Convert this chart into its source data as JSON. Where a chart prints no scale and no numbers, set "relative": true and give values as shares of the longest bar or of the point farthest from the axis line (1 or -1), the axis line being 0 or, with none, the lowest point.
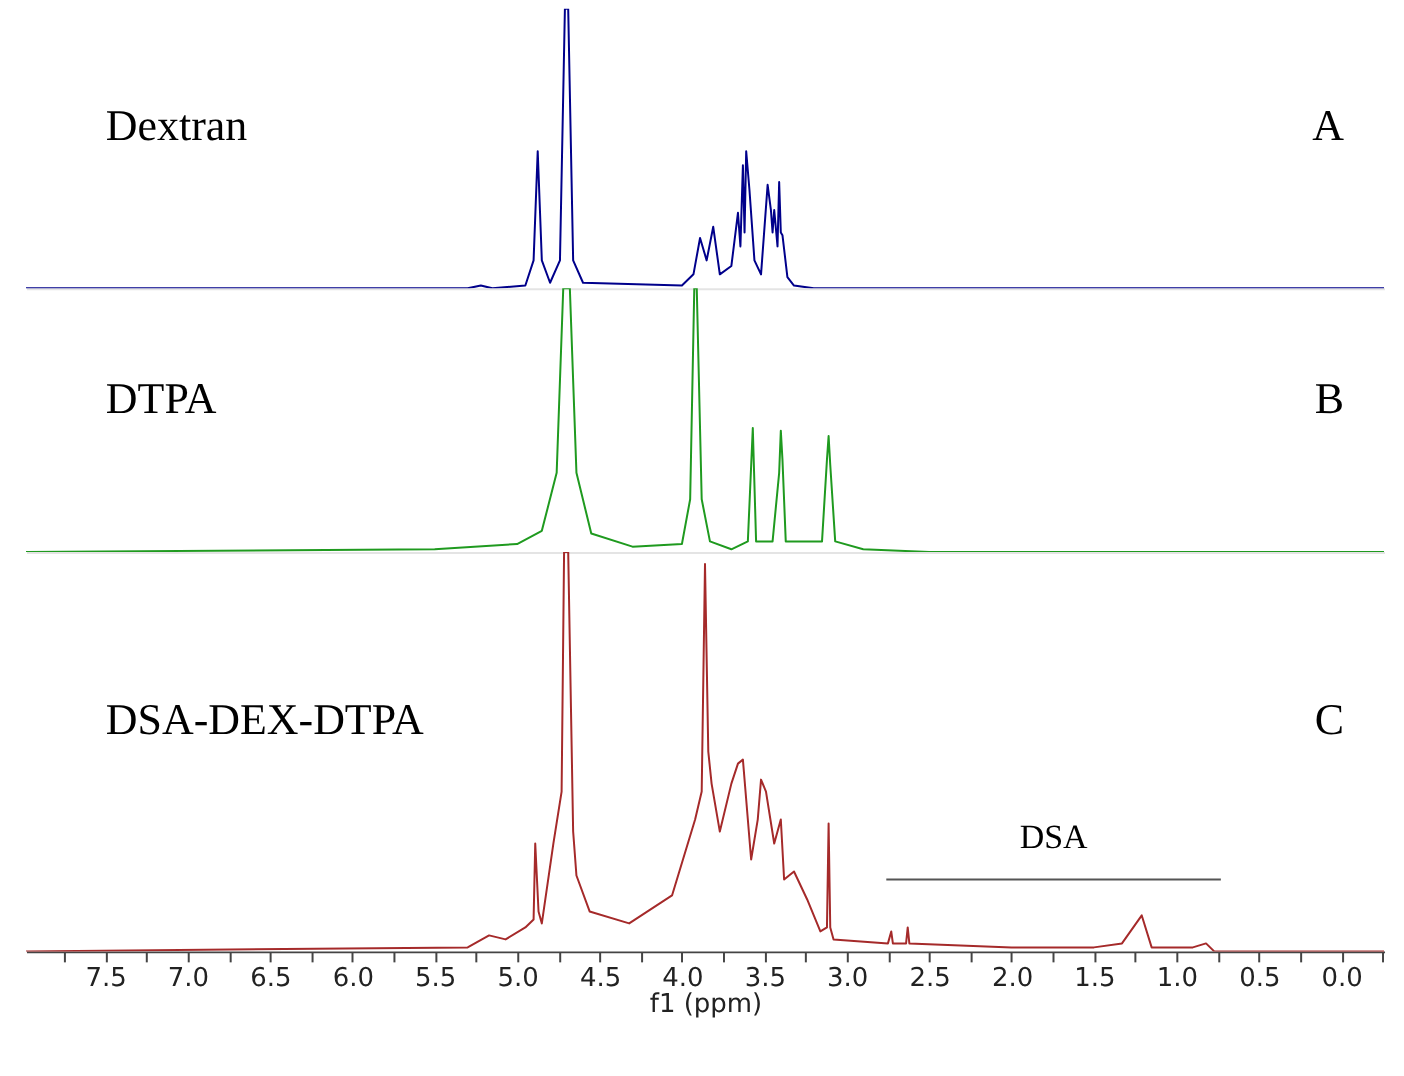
{
  "chart_data": [
    {
      "type": "line",
      "relative": true,
      "xlim": [
        7.98,
        -0.26
      ],
      "tick_labels": false,
      "annotations": [
        "Dextran",
        "A"
      ],
      "series": [
        {
          "color": "#00008b",
          "x": [
            7.98,
            5.3,
            5.22,
            5.15,
            4.95,
            4.9,
            4.875,
            4.85,
            4.8,
            4.74,
            4.71,
            4.69,
            4.66,
            4.6,
            4.0,
            3.93,
            3.89,
            3.85,
            3.81,
            3.77,
            3.7,
            3.66,
            3.645,
            3.63,
            3.62,
            3.61,
            3.59,
            3.56,
            3.52,
            3.48,
            3.46,
            3.45,
            3.44,
            3.42,
            3.41,
            3.4,
            3.39,
            3.36,
            3.32,
            3.2,
            -0.26
          ],
          "values": [
            0,
            0,
            0.01,
            0,
            0.01,
            0.1,
            0.49,
            0.1,
            0.02,
            0.1,
            1,
            1,
            0.1,
            0.02,
            0.01,
            0.05,
            0.18,
            0.1,
            0.22,
            0.05,
            0.08,
            0.27,
            0.15,
            0.44,
            0.2,
            0.49,
            0.35,
            0.1,
            0.05,
            0.37,
            0.28,
            0.2,
            0.28,
            0.15,
            0.38,
            0.2,
            0.19,
            0.04,
            0.01,
            0,
            0
          ]
        }
      ]
    },
    {
      "type": "line",
      "relative": true,
      "xlim": [
        7.98,
        -0.26
      ],
      "tick_labels": false,
      "annotations": [
        "DTPA",
        "B"
      ],
      "series": [
        {
          "color": "#1f9a1f",
          "x": [
            7.98,
            5.5,
            5.0,
            4.85,
            4.76,
            4.72,
            4.68,
            4.64,
            4.55,
            4.3,
            4.0,
            3.95,
            3.925,
            3.91,
            3.88,
            3.83,
            3.7,
            3.6,
            3.57,
            3.55,
            3.45,
            3.41,
            3.4,
            3.39,
            3.37,
            3.15,
            3.12,
            3.11,
            3.1,
            3.07,
            2.9,
            2.5,
            -0.26
          ],
          "values": [
            0,
            0.01,
            0.03,
            0.08,
            0.3,
            1,
            1,
            0.3,
            0.07,
            0.02,
            0.03,
            0.2,
            1,
            1,
            0.2,
            0.04,
            0.01,
            0.04,
            0.47,
            0.04,
            0.04,
            0.3,
            0.46,
            0.35,
            0.04,
            0.04,
            0.35,
            0.44,
            0.33,
            0.04,
            0.01,
            0,
            0
          ]
        }
      ]
    },
    {
      "type": "line",
      "relative": true,
      "xlim": [
        7.98,
        -0.26
      ],
      "tick_labels": "x",
      "xlabel": "f1 (ppm)",
      "xticks": [
        {
          "value": 7.75,
          "label": null
        },
        {
          "value": 7.5,
          "label": "7.5"
        },
        {
          "value": 7.25,
          "label": null
        },
        {
          "value": 7,
          "label": "7.0"
        },
        {
          "value": 6.75,
          "label": null
        },
        {
          "value": 6.5,
          "label": "6.5"
        },
        {
          "value": 6.25,
          "label": null
        },
        {
          "value": 6,
          "label": "6.0"
        },
        {
          "value": 5.75,
          "label": null
        },
        {
          "value": 5.5,
          "label": "5.5"
        },
        {
          "value": 5.25,
          "label": null
        },
        {
          "value": 5,
          "label": "5.0"
        },
        {
          "value": 4.75,
          "label": null
        },
        {
          "value": 4.5,
          "label": "4.5"
        },
        {
          "value": 4.25,
          "label": null
        },
        {
          "value": 4,
          "label": "4.0"
        },
        {
          "value": 3.75,
          "label": null
        },
        {
          "value": 3.5,
          "label": "3.5"
        },
        {
          "value": 3.25,
          "label": null
        },
        {
          "value": 3,
          "label": "3.0"
        },
        {
          "value": 2.75,
          "label": null
        },
        {
          "value": 2.5,
          "label": "2.5"
        },
        {
          "value": 2.25,
          "label": null
        },
        {
          "value": 2,
          "label": "2.0"
        },
        {
          "value": 1.75,
          "label": null
        },
        {
          "value": 1.5,
          "label": "1.5"
        },
        {
          "value": 1.25,
          "label": null
        },
        {
          "value": 1,
          "label": "1.0"
        },
        {
          "value": 0.75,
          "label": null
        },
        {
          "value": 0.5,
          "label": "0.5"
        },
        {
          "value": 0.25,
          "label": null
        },
        {
          "value": 0,
          "label": "0.0"
        },
        {
          "value": -0.25,
          "label": null
        }
      ],
      "annotations": [
        "DSA-DEX-DTPA",
        "C",
        "DSA"
      ],
      "series": [
        {
          "color": "#a52a2a",
          "x": [
            7.98,
            5.3,
            5.17,
            5.07,
            4.95,
            4.9,
            4.89,
            4.87,
            4.85,
            4.78,
            4.73,
            4.715,
            4.69,
            4.66,
            4.64,
            4.56,
            4.32,
            4.06,
            3.92,
            3.88,
            3.86,
            3.84,
            3.82,
            3.77,
            3.7,
            3.66,
            3.63,
            3.58,
            3.54,
            3.52,
            3.49,
            3.44,
            3.4,
            3.38,
            3.32,
            3.24,
            3.16,
            3.12,
            3.11,
            3.1,
            3.08,
            2.75,
            2.73,
            2.72,
            2.64,
            2.63,
            2.62,
            2.0,
            1.5,
            1.33,
            1.21,
            1.15,
            0.9,
            0.82,
            0.77,
            -0.26
          ],
          "values": [
            0,
            0.01,
            0.04,
            0.03,
            0.06,
            0.08,
            0.27,
            0.1,
            0.07,
            0.27,
            0.4,
            1,
            1,
            0.3,
            0.19,
            0.1,
            0.07,
            0.14,
            0.33,
            0.4,
            0.97,
            0.5,
            0.42,
            0.3,
            0.42,
            0.47,
            0.48,
            0.23,
            0.33,
            0.43,
            0.4,
            0.27,
            0.33,
            0.18,
            0.2,
            0.13,
            0.05,
            0.06,
            0.32,
            0.06,
            0.03,
            0.02,
            0.05,
            0.02,
            0.02,
            0.06,
            0.02,
            0.01,
            0.01,
            0.02,
            0.09,
            0.01,
            0.01,
            0.02,
            0,
            0
          ]
        },
        {
          "type": "line",
          "color": "#555555",
          "x": [
            2.76,
            0.73
          ],
          "values": [
            0.18,
            0.18
          ]
        }
      ]
    }
  ]
}
